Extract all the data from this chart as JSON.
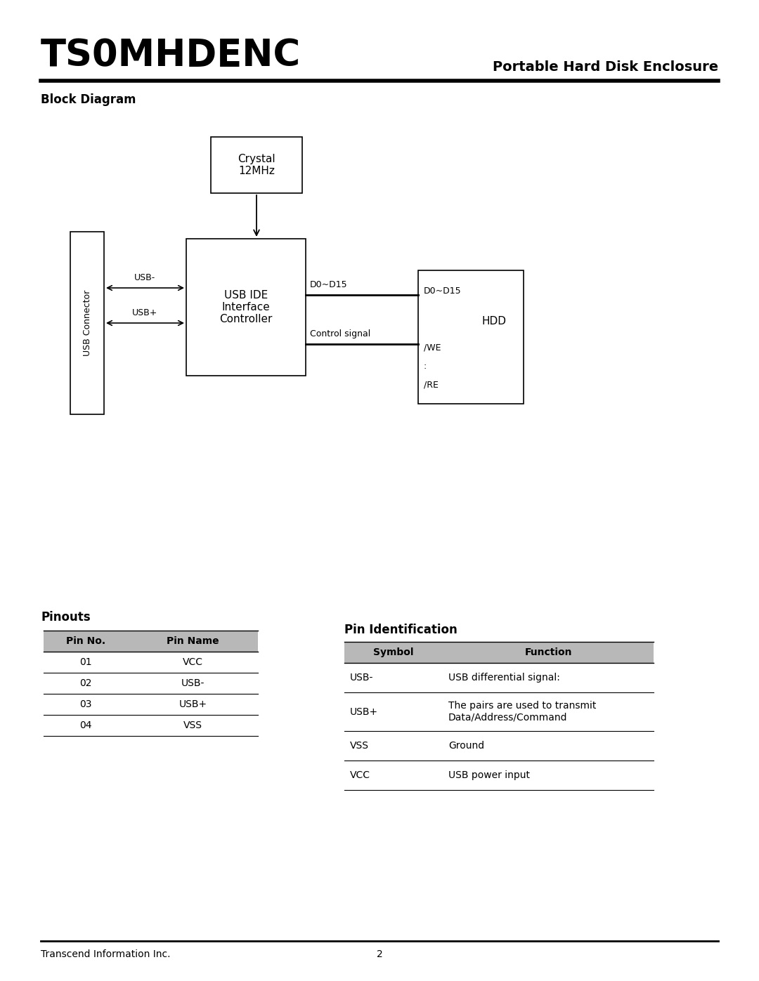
{
  "title": "TS0MHDENC",
  "subtitle": "Portable Hard Disk Enclosure",
  "section_block_diagram": "Block Diagram",
  "section_pinouts": "Pinouts",
  "section_pin_id": "Pin Identification",
  "footer": "Transcend Information Inc.",
  "page_number": "2",
  "bg_color": "#ffffff",
  "text_color": "#000000",
  "table_header_bg": "#b8b8b8",
  "pinouts_table": {
    "headers": [
      "Pin No.",
      "Pin Name"
    ],
    "rows": [
      [
        "01",
        "VCC"
      ],
      [
        "02",
        "USB-"
      ],
      [
        "03",
        "USB+"
      ],
      [
        "04",
        "VSS"
      ]
    ]
  },
  "pin_id_table": {
    "headers": [
      "Symbol",
      "Function"
    ],
    "rows": [
      [
        "USB-",
        "USB differential signal:"
      ],
      [
        "USB+",
        "The pairs are used to transmit\nData/Address/Command"
      ],
      [
        "VSS",
        "Ground"
      ],
      [
        "VCC",
        "USB power input"
      ]
    ]
  }
}
